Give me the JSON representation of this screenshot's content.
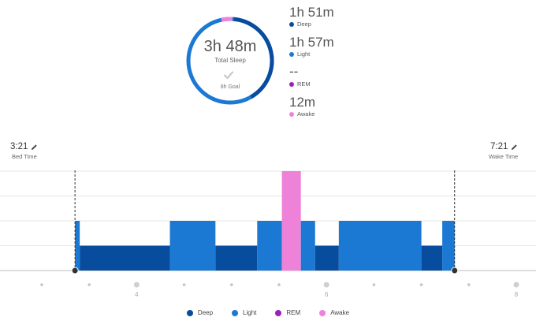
{
  "colors": {
    "deep": "#084c9e",
    "light": "#1b79d3",
    "rem": "#9b1fbd",
    "awake": "#ee82d8",
    "ring_track": "#1b79d3",
    "ring_deep": "#084c9e"
  },
  "summary": {
    "total": "3h 48m",
    "total_label": "Total Sleep",
    "goal_icon": "check-icon",
    "goal": "8h Goal"
  },
  "stats": [
    {
      "value": "1h 51m",
      "label": "Deep",
      "color": "#084c9e"
    },
    {
      "value": "1h 57m",
      "label": "Light",
      "color": "#1b79d3"
    },
    {
      "value": "--",
      "label": "REM",
      "color": "#9b1fbd"
    },
    {
      "value": "12m",
      "label": "Awake",
      "color": "#ee82d8"
    }
  ],
  "bed": {
    "time": "3:21",
    "label": "Bed Time",
    "icon": "pencil-icon"
  },
  "wake": {
    "time": "7:21",
    "label": "Wake Time",
    "icon": "pencil-icon"
  },
  "chart_data": {
    "type": "bar",
    "stages_order": [
      "Awake",
      "REM",
      "Light",
      "Deep"
    ],
    "x_range_hours": [
      3.0,
      8.0
    ],
    "x_tick_labels": [
      "4",
      "6",
      "8"
    ],
    "segments": [
      {
        "stage": "Light",
        "start": 3.35,
        "end": 3.4
      },
      {
        "stage": "Deep",
        "start": 3.4,
        "end": 4.35
      },
      {
        "stage": "Light",
        "start": 4.35,
        "end": 4.83
      },
      {
        "stage": "Deep",
        "start": 4.83,
        "end": 5.27
      },
      {
        "stage": "Light",
        "start": 5.27,
        "end": 5.53
      },
      {
        "stage": "Awake",
        "start": 5.53,
        "end": 5.73
      },
      {
        "stage": "Light",
        "start": 5.73,
        "end": 5.88
      },
      {
        "stage": "Deep",
        "start": 5.88,
        "end": 6.13
      },
      {
        "stage": "Light",
        "start": 6.13,
        "end": 7.0
      },
      {
        "stage": "Deep",
        "start": 7.0,
        "end": 7.22
      },
      {
        "stage": "Light",
        "start": 7.22,
        "end": 7.35
      }
    ]
  },
  "legend": [
    {
      "label": "Deep",
      "color": "#084c9e"
    },
    {
      "label": "Light",
      "color": "#1b79d3"
    },
    {
      "label": "REM",
      "color": "#9b1fbd"
    },
    {
      "label": "Awake",
      "color": "#ee82d8"
    }
  ]
}
